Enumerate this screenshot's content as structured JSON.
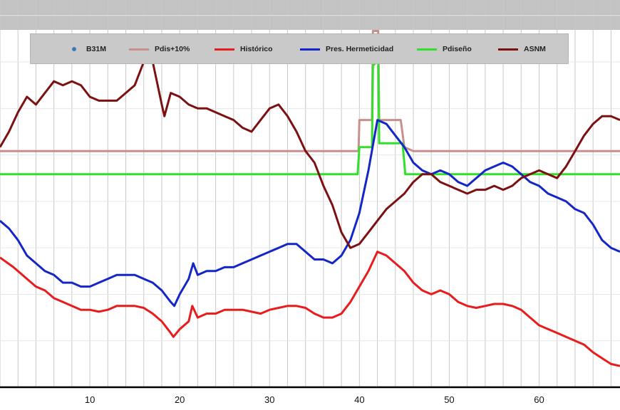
{
  "legend": [
    {
      "label": "B31M",
      "color": "#3d7ab8",
      "kind": "dot"
    },
    {
      "label": "Pdis+10%",
      "color": "#c98f8f",
      "kind": "line"
    },
    {
      "label": "Histórico",
      "color": "#e81c1c",
      "kind": "line"
    },
    {
      "label": "Pres. Hermeticidad",
      "color": "#1426c8",
      "kind": "line"
    },
    {
      "label": "Pdiseño",
      "color": "#31e02b",
      "kind": "line"
    },
    {
      "label": "ASNM",
      "color": "#7b1111",
      "kind": "line"
    }
  ],
  "chart_data": {
    "type": "line",
    "title": "",
    "xlabel": "",
    "ylabel": "",
    "xlim": [
      0,
      69
    ],
    "ylim": [
      0,
      100
    ],
    "x_ticks": [
      10,
      20,
      30,
      40,
      50,
      60
    ],
    "grid": true,
    "legend_position": "top",
    "series": [
      {
        "name": "Pdis+10%",
        "color": "#c98f8f",
        "points": [
          [
            0,
            61
          ],
          [
            37.8,
            61
          ],
          [
            38.1,
            61
          ],
          [
            38.4,
            61
          ],
          [
            38.7,
            61
          ],
          [
            39,
            61
          ],
          [
            39.3,
            61
          ],
          [
            39.6,
            61
          ],
          [
            39.9,
            61
          ],
          [
            40,
            69
          ],
          [
            41.2,
            69
          ],
          [
            41.4,
            69
          ],
          [
            41.5,
            92
          ],
          [
            42.1,
            92
          ],
          [
            42.2,
            69
          ],
          [
            44.4,
            69
          ],
          [
            44.6,
            69
          ],
          [
            45,
            62
          ],
          [
            46,
            61
          ],
          [
            69,
            61
          ]
        ]
      },
      {
        "name": "Pdiseño",
        "color": "#31e02b",
        "points": [
          [
            0,
            55
          ],
          [
            39.8,
            55
          ],
          [
            40,
            62
          ],
          [
            41.4,
            62
          ],
          [
            41.5,
            83
          ],
          [
            41.9,
            84
          ],
          [
            42.1,
            84
          ],
          [
            42.2,
            63
          ],
          [
            44.8,
            63
          ],
          [
            45.1,
            55
          ],
          [
            69,
            55
          ]
        ]
      },
      {
        "name": "Histórico",
        "color": "#e81c1c",
        "points": [
          [
            0,
            33.5
          ],
          [
            1.5,
            31
          ],
          [
            3,
            28
          ],
          [
            4,
            26
          ],
          [
            5,
            25
          ],
          [
            6,
            23
          ],
          [
            7,
            22
          ],
          [
            8,
            21
          ],
          [
            9,
            20
          ],
          [
            10,
            20
          ],
          [
            11,
            19.5
          ],
          [
            12,
            20
          ],
          [
            13,
            21
          ],
          [
            14,
            21
          ],
          [
            15,
            21
          ],
          [
            16,
            20.5
          ],
          [
            17,
            19
          ],
          [
            18,
            17
          ],
          [
            19,
            14
          ],
          [
            19.3,
            13
          ],
          [
            20,
            15
          ],
          [
            21,
            17
          ],
          [
            21.4,
            21
          ],
          [
            22,
            18
          ],
          [
            23,
            19
          ],
          [
            24,
            19
          ],
          [
            25,
            20
          ],
          [
            26,
            20
          ],
          [
            27,
            20
          ],
          [
            28,
            19.5
          ],
          [
            29,
            19
          ],
          [
            30,
            20
          ],
          [
            31,
            20.5
          ],
          [
            32,
            21
          ],
          [
            33,
            21
          ],
          [
            34,
            20.5
          ],
          [
            35,
            19
          ],
          [
            36,
            18
          ],
          [
            37,
            18
          ],
          [
            38,
            19
          ],
          [
            39,
            22
          ],
          [
            40,
            26
          ],
          [
            41,
            30
          ],
          [
            42,
            35
          ],
          [
            43,
            34
          ],
          [
            44,
            32
          ],
          [
            45,
            30
          ],
          [
            46,
            27
          ],
          [
            47,
            25
          ],
          [
            48,
            24
          ],
          [
            49,
            25
          ],
          [
            50,
            24
          ],
          [
            51,
            22
          ],
          [
            52,
            21
          ],
          [
            53,
            20.5
          ],
          [
            54,
            21
          ],
          [
            55,
            21.5
          ],
          [
            56,
            21.5
          ],
          [
            57,
            21
          ],
          [
            58,
            20
          ],
          [
            59,
            18
          ],
          [
            60,
            16
          ],
          [
            61,
            15
          ],
          [
            62,
            14
          ],
          [
            63,
            13
          ],
          [
            64,
            12
          ],
          [
            65,
            11
          ],
          [
            66,
            9
          ],
          [
            67,
            7.5
          ],
          [
            68,
            6
          ],
          [
            69,
            5.5
          ]
        ]
      },
      {
        "name": "Pres. Hermeticidad",
        "color": "#1426c8",
        "points": [
          [
            0,
            43
          ],
          [
            1,
            41
          ],
          [
            2,
            38
          ],
          [
            3,
            34
          ],
          [
            4,
            32
          ],
          [
            5,
            30
          ],
          [
            6,
            29
          ],
          [
            7,
            27
          ],
          [
            8,
            27
          ],
          [
            9,
            26
          ],
          [
            10,
            26
          ],
          [
            11,
            27
          ],
          [
            12,
            28
          ],
          [
            13,
            29
          ],
          [
            14,
            29
          ],
          [
            15,
            29
          ],
          [
            16,
            28
          ],
          [
            17,
            27
          ],
          [
            18,
            25
          ],
          [
            19,
            22
          ],
          [
            19.4,
            21
          ],
          [
            20,
            24
          ],
          [
            21,
            28
          ],
          [
            21.5,
            32
          ],
          [
            22,
            29
          ],
          [
            23,
            30
          ],
          [
            24,
            30
          ],
          [
            25,
            31
          ],
          [
            26,
            31
          ],
          [
            27,
            32
          ],
          [
            28,
            33
          ],
          [
            29,
            34
          ],
          [
            30,
            35
          ],
          [
            31,
            36
          ],
          [
            32,
            37
          ],
          [
            33,
            37
          ],
          [
            34,
            35
          ],
          [
            35,
            33
          ],
          [
            36,
            33
          ],
          [
            37,
            32
          ],
          [
            38,
            34
          ],
          [
            39,
            38
          ],
          [
            40,
            45
          ],
          [
            41,
            56
          ],
          [
            42,
            69
          ],
          [
            43,
            68
          ],
          [
            44,
            65
          ],
          [
            45,
            62
          ],
          [
            46,
            58
          ],
          [
            47,
            56
          ],
          [
            48,
            55
          ],
          [
            49,
            56
          ],
          [
            50,
            55
          ],
          [
            51,
            53
          ],
          [
            52,
            52
          ],
          [
            53,
            54
          ],
          [
            54,
            56
          ],
          [
            55,
            57
          ],
          [
            56,
            58
          ],
          [
            57,
            57
          ],
          [
            58,
            55
          ],
          [
            59,
            53
          ],
          [
            60,
            52
          ],
          [
            61,
            50
          ],
          [
            62,
            49
          ],
          [
            63,
            48
          ],
          [
            64,
            46
          ],
          [
            65,
            45
          ],
          [
            66,
            42
          ],
          [
            67,
            38
          ],
          [
            68,
            36
          ],
          [
            69,
            35
          ]
        ]
      },
      {
        "name": "ASNM",
        "color": "#7b1111",
        "points": [
          [
            0,
            62
          ],
          [
            1,
            66
          ],
          [
            2,
            71
          ],
          [
            3,
            75
          ],
          [
            4,
            73
          ],
          [
            5,
            76
          ],
          [
            6,
            79
          ],
          [
            7,
            78
          ],
          [
            8,
            79
          ],
          [
            9,
            78
          ],
          [
            10,
            75
          ],
          [
            11,
            74
          ],
          [
            12,
            74
          ],
          [
            13,
            74
          ],
          [
            14,
            76
          ],
          [
            15,
            78
          ],
          [
            16,
            84
          ],
          [
            16.5,
            87
          ],
          [
            17,
            84
          ],
          [
            18,
            73
          ],
          [
            18.3,
            70
          ],
          [
            19,
            76
          ],
          [
            20,
            75
          ],
          [
            21,
            73
          ],
          [
            22,
            72
          ],
          [
            23,
            72
          ],
          [
            24,
            71
          ],
          [
            25,
            70
          ],
          [
            26,
            69
          ],
          [
            27,
            67
          ],
          [
            28,
            66
          ],
          [
            29,
            69
          ],
          [
            30,
            72
          ],
          [
            31,
            73
          ],
          [
            32,
            70
          ],
          [
            33,
            66
          ],
          [
            34,
            61
          ],
          [
            35,
            58
          ],
          [
            36,
            52
          ],
          [
            37,
            47
          ],
          [
            38,
            40
          ],
          [
            39,
            36
          ],
          [
            40,
            37
          ],
          [
            41,
            40
          ],
          [
            42,
            43
          ],
          [
            43,
            46
          ],
          [
            44,
            48
          ],
          [
            45,
            50
          ],
          [
            46,
            53
          ],
          [
            47,
            55
          ],
          [
            48,
            55
          ],
          [
            49,
            53
          ],
          [
            50,
            52
          ],
          [
            51,
            51
          ],
          [
            52,
            50
          ],
          [
            53,
            51
          ],
          [
            54,
            51
          ],
          [
            55,
            52
          ],
          [
            56,
            51
          ],
          [
            57,
            52
          ],
          [
            58,
            54
          ],
          [
            59,
            55
          ],
          [
            60,
            56
          ],
          [
            61,
            55
          ],
          [
            62,
            54
          ],
          [
            63,
            57
          ],
          [
            64,
            61
          ],
          [
            65,
            65
          ],
          [
            66,
            68
          ],
          [
            67,
            70
          ],
          [
            68,
            70
          ],
          [
            69,
            69
          ]
        ]
      }
    ]
  }
}
